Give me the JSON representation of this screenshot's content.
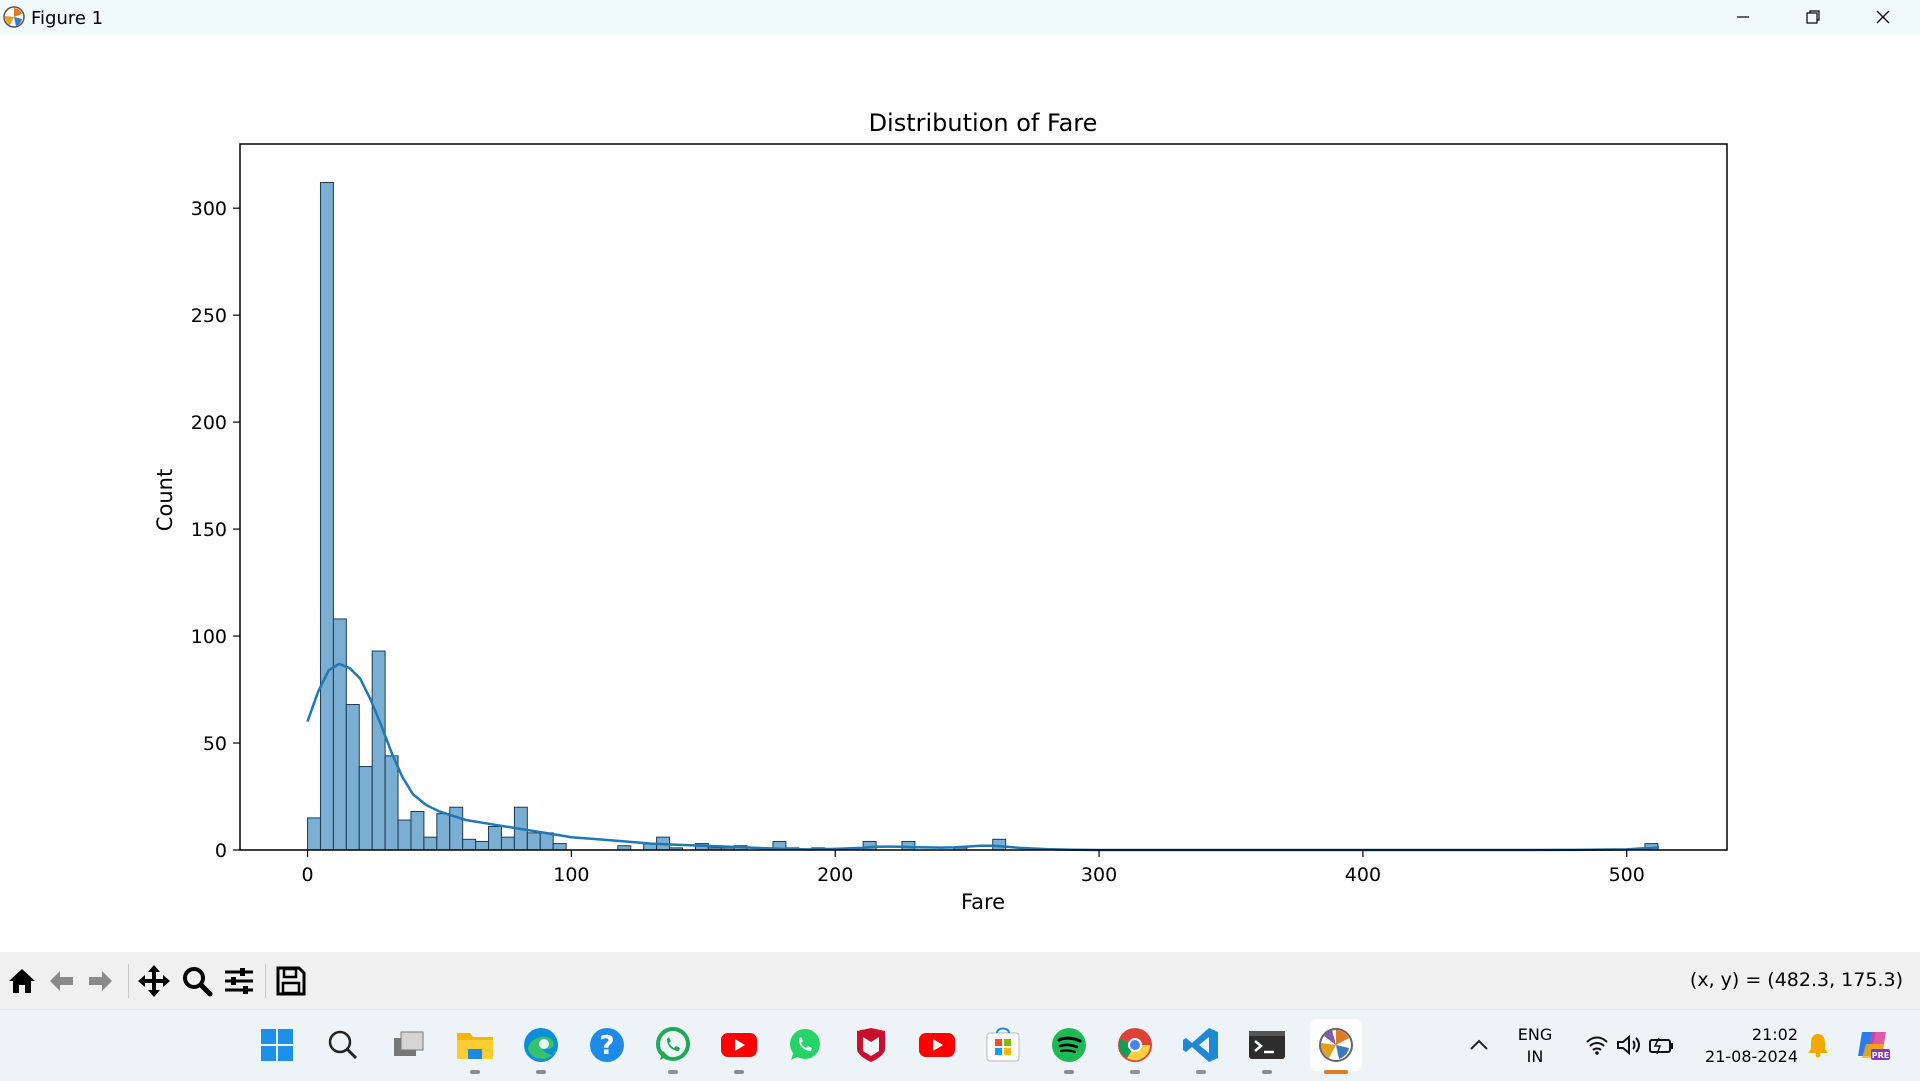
{
  "window": {
    "title": "Figure 1"
  },
  "window_controls": {
    "minimize": "minimize-icon",
    "restore": "restore-icon",
    "close": "close-icon"
  },
  "toolbar": {
    "buttons": [
      "home-icon",
      "back-arrow-icon",
      "forward-arrow-icon",
      "pan-icon",
      "zoom-icon",
      "configure-subplots-icon",
      "save-icon"
    ],
    "coords": "(x, y) = (482.3, 175.3)"
  },
  "chart_data": {
    "type": "bar",
    "title": "Distribution of Fare",
    "xlabel": "Fare",
    "ylabel": "Count",
    "xlim": [
      -25.6,
      538.0
    ],
    "ylim": [
      0,
      330
    ],
    "xticks": [
      0,
      100,
      200,
      300,
      400,
      500
    ],
    "yticks": [
      0,
      50,
      100,
      150,
      200,
      250,
      300
    ],
    "bin_start": 0,
    "bin_width": 4.9,
    "counts": [
      15,
      312,
      108,
      68,
      39,
      93,
      44,
      14,
      18,
      6,
      17,
      20,
      5,
      4,
      11,
      6,
      20,
      8,
      8,
      3,
      0,
      0,
      0,
      0,
      2,
      0,
      3,
      6,
      1,
      0,
      3,
      1,
      1,
      2,
      0,
      1,
      4,
      1,
      0,
      1,
      0,
      3,
      2,
      1,
      1,
      1,
      0,
      0,
      0,
      0,
      0,
      0,
      0,
      0,
      0,
      0,
      0,
      0,
      0,
      0,
      0,
      0,
      0,
      0,
      0,
      0,
      0,
      0,
      0,
      0,
      0,
      0,
      0,
      0,
      0,
      0,
      0,
      0,
      0,
      0,
      0,
      0,
      0,
      0,
      0,
      0,
      0,
      0,
      0,
      0,
      0,
      0,
      0,
      0,
      0,
      0,
      0,
      0,
      0,
      0,
      0,
      0,
      0,
      0,
      0
    ],
    "bars_extra": [
      {
        "x0": 0,
        "w": 4.9,
        "c": 0
      }
    ],
    "kde": {
      "x": [
        0,
        4,
        8,
        12,
        16,
        20,
        24,
        28,
        32,
        36,
        40,
        45,
        50,
        55,
        60,
        65,
        70,
        75,
        80,
        85,
        90,
        95,
        100,
        110,
        120,
        130,
        140,
        150,
        160,
        170,
        180,
        190,
        200,
        210,
        215,
        220,
        225,
        230,
        235,
        240,
        245,
        250,
        255,
        260,
        265,
        270,
        280,
        290,
        300,
        320,
        350,
        400,
        450,
        480,
        500,
        505,
        510,
        512.3
      ],
      "y": [
        60,
        74,
        84,
        87,
        85,
        80,
        70,
        58,
        45,
        34,
        26,
        21,
        18,
        16,
        14,
        13,
        12,
        11,
        10,
        9,
        8,
        7,
        6,
        5,
        4,
        3,
        2.5,
        2,
        1.5,
        1,
        0.5,
        0.3,
        0.5,
        1,
        1.5,
        1.6,
        1.5,
        1.3,
        1.2,
        1.1,
        1.2,
        1.6,
        2,
        2,
        1.5,
        1,
        0.4,
        0.1,
        0,
        0,
        0,
        0,
        0,
        0.05,
        0.3,
        0.7,
        1.0,
        1.2
      ]
    },
    "special_bins": [
      {
        "left": 210.6,
        "count": 4
      },
      {
        "left": 225.3,
        "count": 4
      },
      {
        "left": 245.0,
        "count": 1
      },
      {
        "left": 259.7,
        "count": 5
      },
      {
        "left": 506.9,
        "count": 3
      }
    ],
    "colors": {
      "bar_fill": "#7aaed3",
      "bar_edge": "#1f3a50",
      "kde_line": "#1f77b4"
    },
    "grid": false,
    "legend": "none"
  },
  "taskbar": {
    "apps": [
      "windows-start-icon",
      "search-icon",
      "task-view-icon",
      "file-explorer-icon",
      "edge-icon",
      "help-icon",
      "whatsapp-icon",
      "youtube-icon",
      "whatsapp-icon",
      "mcafee-icon",
      "youtube-icon",
      "microsoft-store-icon",
      "spotify-icon",
      "chrome-icon",
      "vscode-icon",
      "terminal-icon",
      "matplotlib-icon"
    ],
    "language": "ENG",
    "region": "IN",
    "time": "21:02",
    "date": "21-08-2024"
  }
}
